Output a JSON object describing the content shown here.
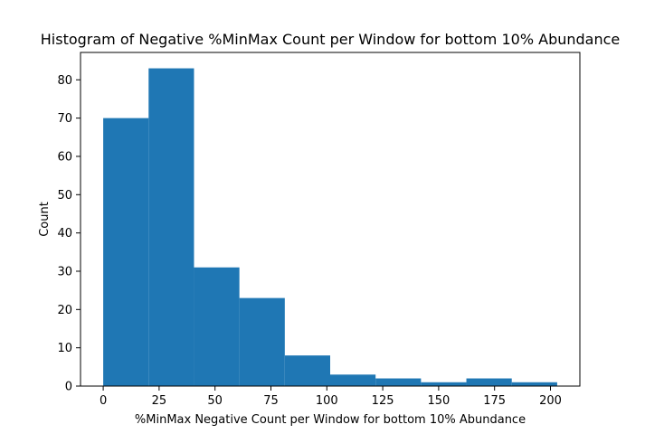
{
  "chart_data": {
    "type": "bar",
    "title": "Histogram of Negative %MinMax Count per Window for bottom 10% Abundance",
    "xlabel": "%MinMax Negative Count per Window for bottom 10% Abundance",
    "ylabel": "Count",
    "bin_edges": [
      0,
      20.3,
      40.6,
      60.9,
      81.2,
      101.5,
      121.8,
      142.1,
      162.4,
      182.7,
      203
    ],
    "values": [
      70,
      83,
      31,
      23,
      8,
      3,
      2,
      1,
      2,
      1
    ],
    "xlim": [
      -10.15,
      213.15
    ],
    "ylim": [
      0,
      87.15
    ],
    "xticks": [
      0,
      25,
      50,
      75,
      100,
      125,
      150,
      175,
      200
    ],
    "xtick_labels": [
      "0",
      "25",
      "50",
      "75",
      "100",
      "125",
      "150",
      "175",
      "200"
    ],
    "yticks": [
      0,
      10,
      20,
      30,
      40,
      50,
      60,
      70,
      80
    ],
    "ytick_labels": [
      "0",
      "10",
      "20",
      "30",
      "40",
      "50",
      "60",
      "70",
      "80"
    ],
    "bar_color": "#1f77b4",
    "grid": false,
    "legend": "none"
  }
}
